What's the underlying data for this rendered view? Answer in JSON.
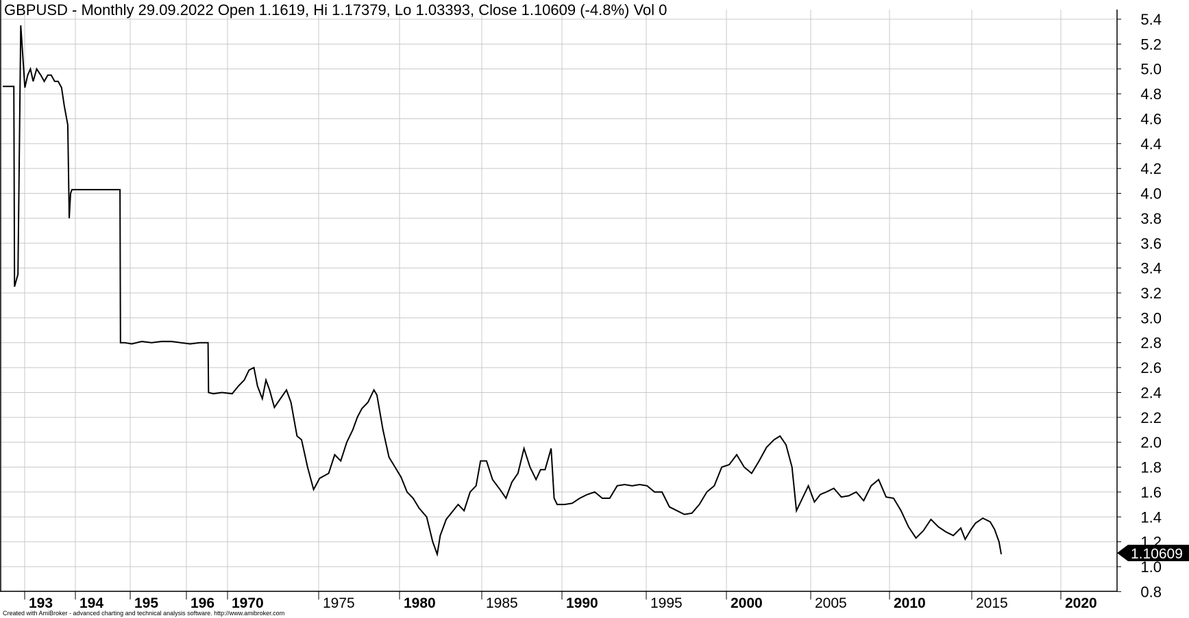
{
  "title": "GBPUSD - Monthly 29.09.2022 Open 1.1619, Hi 1.17379, Lo 1.03393, Close 1.10609 (-4.8%) Vol 0",
  "footer": "Created with AmiBroker - advanced charting and technical analysis software. http://www.amibroker.com",
  "last_value_label": "1.10609",
  "colors": {
    "price": "#000000",
    "grid": "#c8c8c8",
    "background": "#ffffff",
    "badge": "#000000"
  },
  "chart_data": {
    "type": "line",
    "title": "GBPUSD - Monthly 29.09.2022 Open 1.1619, Hi 1.17379, Lo 1.03393, Close 1.10609 (-4.8%) Vol 0",
    "ylim": [
      0.8,
      5.5
    ],
    "y_ticks": [
      0.8,
      1.0,
      1.2,
      1.4,
      1.6,
      1.8,
      2.0,
      2.2,
      2.4,
      2.6,
      2.8,
      3.0,
      3.2,
      3.4,
      3.6,
      3.8,
      4.0,
      4.2,
      4.4,
      4.6,
      4.8,
      5.0,
      5.2,
      5.4
    ],
    "y_tick_labels": [
      "0.8",
      "1.0",
      "1.2",
      "1.4",
      "1.6",
      "1.8",
      "2.0",
      "2.2",
      "2.4",
      "2.6",
      "2.8",
      "3.0",
      "3.2",
      "3.4",
      "3.6",
      "3.8",
      "4.0",
      "4.2",
      "4.4",
      "4.6",
      "4.8",
      "5.0",
      "5.2",
      "5.4"
    ],
    "y_axis_side": "right",
    "grid": true,
    "x_tick_labels": [
      {
        "label": "193",
        "major": true
      },
      {
        "label": "194",
        "major": true
      },
      {
        "label": "195",
        "major": true
      },
      {
        "label": "196",
        "major": true
      },
      {
        "label": "1970",
        "major": true
      },
      {
        "label": "1975",
        "major": false
      },
      {
        "label": "1980",
        "major": true
      },
      {
        "label": "1985",
        "major": false
      },
      {
        "label": "1990",
        "major": true
      },
      {
        "label": "1995",
        "major": false
      },
      {
        "label": "2000",
        "major": true
      },
      {
        "label": "2005",
        "major": false
      },
      {
        "label": "2010",
        "major": true
      },
      {
        "label": "2015",
        "major": false
      },
      {
        "label": "2020",
        "major": true
      }
    ],
    "series": [
      {
        "points": [
          [
            1930.0,
            4.86
          ],
          [
            1931.6,
            4.86
          ],
          [
            1931.7,
            3.25
          ],
          [
            1932.2,
            3.35
          ],
          [
            1932.6,
            5.35
          ],
          [
            1932.9,
            5.1
          ],
          [
            1933.2,
            4.85
          ],
          [
            1933.6,
            4.95
          ],
          [
            1934.0,
            5.0
          ],
          [
            1934.4,
            4.9
          ],
          [
            1934.9,
            5.0
          ],
          [
            1935.5,
            4.95
          ],
          [
            1936.0,
            4.9
          ],
          [
            1936.5,
            4.95
          ],
          [
            1937.0,
            4.95
          ],
          [
            1937.5,
            4.9
          ],
          [
            1938.0,
            4.9
          ],
          [
            1938.5,
            4.85
          ],
          [
            1938.9,
            4.7
          ],
          [
            1939.4,
            4.55
          ],
          [
            1939.6,
            3.8
          ],
          [
            1939.8,
            4.0
          ],
          [
            1940.0,
            4.03
          ],
          [
            1942.0,
            4.03
          ],
          [
            1944.0,
            4.03
          ],
          [
            1946.0,
            4.03
          ],
          [
            1948.0,
            4.03
          ],
          [
            1949.6,
            4.03
          ],
          [
            1949.7,
            2.8
          ],
          [
            1950.5,
            2.8
          ],
          [
            1952.0,
            2.79
          ],
          [
            1954.0,
            2.81
          ],
          [
            1956.0,
            2.8
          ],
          [
            1958.0,
            2.81
          ],
          [
            1960.0,
            2.81
          ],
          [
            1962.0,
            2.8
          ],
          [
            1964.0,
            2.79
          ],
          [
            1966.0,
            2.8
          ],
          [
            1967.8,
            2.8
          ],
          [
            1967.9,
            2.4
          ],
          [
            1968.5,
            2.39
          ],
          [
            1969.5,
            2.4
          ],
          [
            1970.5,
            2.39
          ],
          [
            1971.0,
            2.45
          ],
          [
            1971.5,
            2.5
          ],
          [
            1971.9,
            2.58
          ],
          [
            1972.3,
            2.6
          ],
          [
            1972.6,
            2.45
          ],
          [
            1973.0,
            2.35
          ],
          [
            1973.3,
            2.5
          ],
          [
            1973.6,
            2.42
          ],
          [
            1974.0,
            2.28
          ],
          [
            1974.5,
            2.35
          ],
          [
            1975.0,
            2.42
          ],
          [
            1975.3,
            2.32
          ],
          [
            1975.7,
            2.05
          ],
          [
            1976.0,
            2.02
          ],
          [
            1976.4,
            1.8
          ],
          [
            1976.8,
            1.62
          ],
          [
            1977.2,
            1.71
          ],
          [
            1977.8,
            1.75
          ],
          [
            1978.2,
            1.9
          ],
          [
            1978.6,
            1.85
          ],
          [
            1979.0,
            2.0
          ],
          [
            1979.4,
            2.1
          ],
          [
            1979.7,
            2.2
          ],
          [
            1980.0,
            2.27
          ],
          [
            1980.4,
            2.32
          ],
          [
            1980.8,
            2.42
          ],
          [
            1981.0,
            2.38
          ],
          [
            1981.4,
            2.1
          ],
          [
            1981.8,
            1.88
          ],
          [
            1982.2,
            1.8
          ],
          [
            1982.6,
            1.72
          ],
          [
            1983.0,
            1.6
          ],
          [
            1983.4,
            1.55
          ],
          [
            1983.8,
            1.47
          ],
          [
            1984.3,
            1.4
          ],
          [
            1984.7,
            1.2
          ],
          [
            1985.0,
            1.1
          ],
          [
            1985.2,
            1.25
          ],
          [
            1985.6,
            1.38
          ],
          [
            1986.0,
            1.44
          ],
          [
            1986.4,
            1.5
          ],
          [
            1986.8,
            1.45
          ],
          [
            1987.2,
            1.6
          ],
          [
            1987.6,
            1.65
          ],
          [
            1987.9,
            1.85
          ],
          [
            1988.3,
            1.85
          ],
          [
            1988.7,
            1.7
          ],
          [
            1989.2,
            1.62
          ],
          [
            1989.6,
            1.55
          ],
          [
            1990.0,
            1.68
          ],
          [
            1990.4,
            1.75
          ],
          [
            1990.8,
            1.95
          ],
          [
            1991.2,
            1.8
          ],
          [
            1991.6,
            1.7
          ],
          [
            1991.9,
            1.78
          ],
          [
            1992.2,
            1.78
          ],
          [
            1992.6,
            1.95
          ],
          [
            1992.8,
            1.55
          ],
          [
            1993.0,
            1.5
          ],
          [
            1993.5,
            1.5
          ],
          [
            1994.0,
            1.51
          ],
          [
            1994.5,
            1.55
          ],
          [
            1995.0,
            1.58
          ],
          [
            1995.5,
            1.6
          ],
          [
            1996.0,
            1.55
          ],
          [
            1996.5,
            1.55
          ],
          [
            1997.0,
            1.65
          ],
          [
            1997.5,
            1.66
          ],
          [
            1998.0,
            1.65
          ],
          [
            1998.5,
            1.66
          ],
          [
            1999.0,
            1.65
          ],
          [
            1999.5,
            1.6
          ],
          [
            2000.0,
            1.6
          ],
          [
            2000.5,
            1.48
          ],
          [
            2001.0,
            1.45
          ],
          [
            2001.5,
            1.42
          ],
          [
            2002.0,
            1.43
          ],
          [
            2002.5,
            1.5
          ],
          [
            2003.0,
            1.6
          ],
          [
            2003.5,
            1.65
          ],
          [
            2004.0,
            1.8
          ],
          [
            2004.5,
            1.82
          ],
          [
            2005.0,
            1.9
          ],
          [
            2005.5,
            1.8
          ],
          [
            2006.0,
            1.75
          ],
          [
            2006.5,
            1.85
          ],
          [
            2007.0,
            1.96
          ],
          [
            2007.5,
            2.02
          ],
          [
            2007.9,
            2.05
          ],
          [
            2008.3,
            1.98
          ],
          [
            2008.7,
            1.8
          ],
          [
            2009.0,
            1.45
          ],
          [
            2009.4,
            1.55
          ],
          [
            2009.8,
            1.65
          ],
          [
            2010.2,
            1.52
          ],
          [
            2010.6,
            1.58
          ],
          [
            2011.0,
            1.6
          ],
          [
            2011.5,
            1.63
          ],
          [
            2012.0,
            1.56
          ],
          [
            2012.5,
            1.57
          ],
          [
            2013.0,
            1.6
          ],
          [
            2013.5,
            1.53
          ],
          [
            2014.0,
            1.65
          ],
          [
            2014.5,
            1.7
          ],
          [
            2015.0,
            1.56
          ],
          [
            2015.5,
            1.55
          ],
          [
            2016.0,
            1.45
          ],
          [
            2016.5,
            1.32
          ],
          [
            2017.0,
            1.23
          ],
          [
            2017.5,
            1.29
          ],
          [
            2018.0,
            1.38
          ],
          [
            2018.5,
            1.32
          ],
          [
            2019.0,
            1.28
          ],
          [
            2019.5,
            1.25
          ],
          [
            2020.0,
            1.31
          ],
          [
            2020.3,
            1.22
          ],
          [
            2020.7,
            1.3
          ],
          [
            2021.0,
            1.35
          ],
          [
            2021.5,
            1.39
          ],
          [
            2022.0,
            1.36
          ],
          [
            2022.3,
            1.3
          ],
          [
            2022.6,
            1.2
          ],
          [
            2022.75,
            1.1
          ]
        ]
      }
    ]
  }
}
